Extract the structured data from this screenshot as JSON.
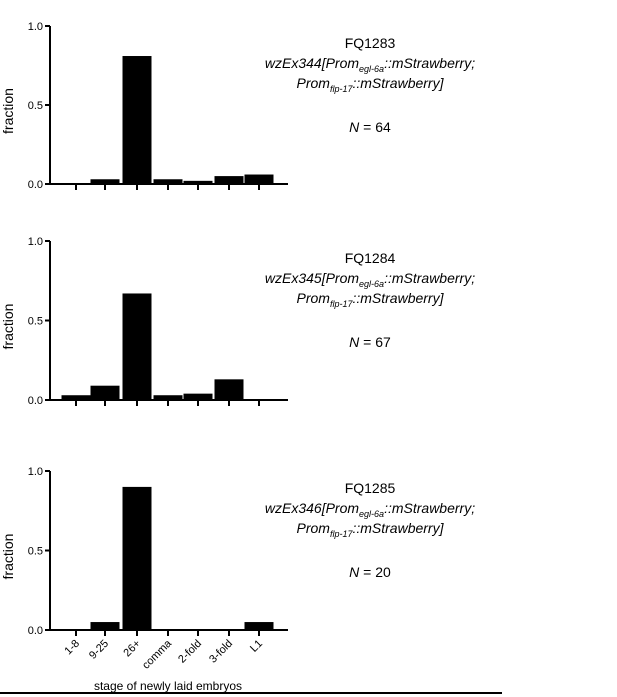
{
  "chart_data": [
    {
      "type": "bar",
      "categories": [
        "1-8",
        "9-25",
        "26+",
        "comma",
        "2-fold",
        "3-fold",
        "L1"
      ],
      "values": [
        0.0,
        0.03,
        0.81,
        0.03,
        0.02,
        0.05,
        0.06
      ],
      "ylabel": "fraction",
      "ylim": [
        0,
        1.0
      ],
      "yticks": [
        "0.0",
        "0.5",
        "1.0"
      ],
      "strain": "FQ1283",
      "genotype": {
        "ex": "wzEx344",
        "p1": "Prom",
        "p1_sub": "egl-6a",
        "p1_tail": "::mStrawberry;",
        "p2": "Prom",
        "p2_sub": "flp-17",
        "p2_tail": "::mStrawberry]"
      },
      "n_label": "N",
      "n_value": "= 64"
    },
    {
      "type": "bar",
      "categories": [
        "1-8",
        "9-25",
        "26+",
        "comma",
        "2-fold",
        "3-fold",
        "L1"
      ],
      "values": [
        0.03,
        0.09,
        0.67,
        0.03,
        0.04,
        0.13,
        0.0
      ],
      "ylabel": "fraction",
      "ylim": [
        0,
        1.0
      ],
      "yticks": [
        "0.0",
        "0.5",
        "1.0"
      ],
      "strain": "FQ1284",
      "genotype": {
        "ex": "wzEx345",
        "p1": "Prom",
        "p1_sub": "egl-6a",
        "p1_tail": "::mStrawberry;",
        "p2": "Prom",
        "p2_sub": "flp-17",
        "p2_tail": "::mStrawberry]"
      },
      "n_label": "N",
      "n_value": "= 67"
    },
    {
      "type": "bar",
      "categories": [
        "1-8",
        "9-25",
        "26+",
        "comma",
        "2-fold",
        "3-fold",
        "L1"
      ],
      "values": [
        0.0,
        0.05,
        0.9,
        0.0,
        0.0,
        0.0,
        0.05
      ],
      "ylabel": "fraction",
      "ylim": [
        0,
        1.0
      ],
      "yticks": [
        "0.0",
        "0.5",
        "1.0"
      ],
      "xlabel": "stage of newly laid embryos",
      "show_xticklabels": true,
      "strain": "FQ1285",
      "genotype": {
        "ex": "wzEx346",
        "p1": "Prom",
        "p1_sub": "egl-6a",
        "p1_tail": "::mStrawberry;",
        "p2": "Prom",
        "p2_sub": "flp-17",
        "p2_tail": "::mStrawberry]"
      },
      "n_label": "N",
      "n_value": "= 20"
    }
  ]
}
